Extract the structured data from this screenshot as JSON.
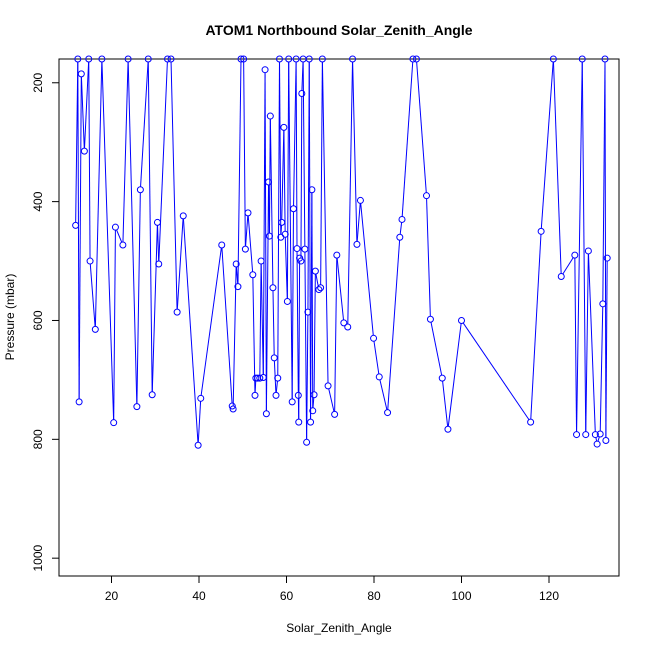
{
  "chart_data": {
    "type": "line",
    "title": "ATOM1 Northbound Solar_Zenith_Angle",
    "xlabel": "Solar_Zenith_Angle",
    "ylabel": "Pressure (mbar)",
    "xlim": [
      8,
      136
    ],
    "ylim": [
      1030,
      160
    ],
    "y_reversed": true,
    "x_ticks": [
      20,
      40,
      60,
      80,
      100,
      120
    ],
    "y_ticks": [
      200,
      400,
      600,
      800,
      1000
    ],
    "grid": false,
    "legend": "none",
    "line_color": "#0000ff",
    "marker": "open-circle",
    "points": [
      [
        11.8,
        440
      ],
      [
        12.3,
        160
      ],
      [
        12.6,
        737
      ],
      [
        13.1,
        185
      ],
      [
        13.8,
        315
      ],
      [
        14.8,
        160
      ],
      [
        15.1,
        500
      ],
      [
        16.3,
        615
      ],
      [
        17.8,
        160
      ],
      [
        20.5,
        772
      ],
      [
        20.9,
        443
      ],
      [
        22.6,
        473
      ],
      [
        23.8,
        160
      ],
      [
        25.8,
        745
      ],
      [
        26.6,
        380
      ],
      [
        28.4,
        160
      ],
      [
        29.3,
        725
      ],
      [
        30.5,
        435
      ],
      [
        30.8,
        505
      ],
      [
        32.8,
        160
      ],
      [
        33.6,
        160
      ],
      [
        35.0,
        586
      ],
      [
        36.4,
        424
      ],
      [
        39.8,
        810
      ],
      [
        40.4,
        731
      ],
      [
        45.2,
        473
      ],
      [
        47.6,
        744
      ],
      [
        47.8,
        749
      ],
      [
        48.5,
        505
      ],
      [
        48.9,
        543
      ],
      [
        49.6,
        160
      ],
      [
        50.2,
        160
      ],
      [
        50.6,
        480
      ],
      [
        51.2,
        419
      ],
      [
        52.3,
        523
      ],
      [
        52.8,
        726
      ],
      [
        53.0,
        697
      ],
      [
        53.4,
        697
      ],
      [
        53.9,
        697
      ],
      [
        54.2,
        500
      ],
      [
        54.7,
        696
      ],
      [
        55.1,
        178
      ],
      [
        55.4,
        757
      ],
      [
        55.9,
        367
      ],
      [
        56.1,
        458
      ],
      [
        56.3,
        256
      ],
      [
        56.9,
        545
      ],
      [
        57.2,
        663
      ],
      [
        57.6,
        726
      ],
      [
        58.0,
        697
      ],
      [
        58.4,
        160
      ],
      [
        58.7,
        460
      ],
      [
        58.9,
        435
      ],
      [
        59.4,
        275
      ],
      [
        59.7,
        455
      ],
      [
        60.2,
        568
      ],
      [
        60.5,
        160
      ],
      [
        61.3,
        737
      ],
      [
        61.6,
        412
      ],
      [
        62.2,
        160
      ],
      [
        62.4,
        479
      ],
      [
        62.7,
        726
      ],
      [
        62.8,
        771
      ],
      [
        63.0,
        495
      ],
      [
        63.3,
        500
      ],
      [
        63.5,
        218
      ],
      [
        63.8,
        160
      ],
      [
        64.2,
        480
      ],
      [
        64.6,
        805
      ],
      [
        64.9,
        586
      ],
      [
        65.2,
        160
      ],
      [
        65.5,
        771
      ],
      [
        65.8,
        380
      ],
      [
        66.0,
        752
      ],
      [
        66.3,
        725
      ],
      [
        66.6,
        517
      ],
      [
        67.4,
        548
      ],
      [
        67.8,
        545
      ],
      [
        68.2,
        160
      ],
      [
        69.5,
        710
      ],
      [
        71.0,
        758
      ],
      [
        71.5,
        490
      ],
      [
        73.1,
        604
      ],
      [
        74.0,
        611
      ],
      [
        75.1,
        160
      ],
      [
        76.1,
        472
      ],
      [
        76.9,
        398
      ],
      [
        79.9,
        630
      ],
      [
        81.2,
        695
      ],
      [
        83.1,
        755
      ],
      [
        85.9,
        460
      ],
      [
        86.4,
        430
      ],
      [
        88.9,
        160
      ],
      [
        89.7,
        160
      ],
      [
        92.0,
        390
      ],
      [
        92.9,
        598
      ],
      [
        95.6,
        697
      ],
      [
        96.9,
        783
      ],
      [
        100.0,
        600
      ],
      [
        115.8,
        771
      ],
      [
        118.2,
        450
      ],
      [
        121.0,
        160
      ],
      [
        122.8,
        526
      ],
      [
        125.9,
        490
      ],
      [
        126.3,
        792
      ],
      [
        127.6,
        160
      ],
      [
        128.4,
        792
      ],
      [
        129.0,
        483
      ],
      [
        130.6,
        792
      ],
      [
        131.0,
        808
      ],
      [
        131.7,
        791
      ],
      [
        132.3,
        572
      ],
      [
        132.8,
        160
      ],
      [
        133.0,
        802
      ],
      [
        133.3,
        495
      ]
    ]
  }
}
